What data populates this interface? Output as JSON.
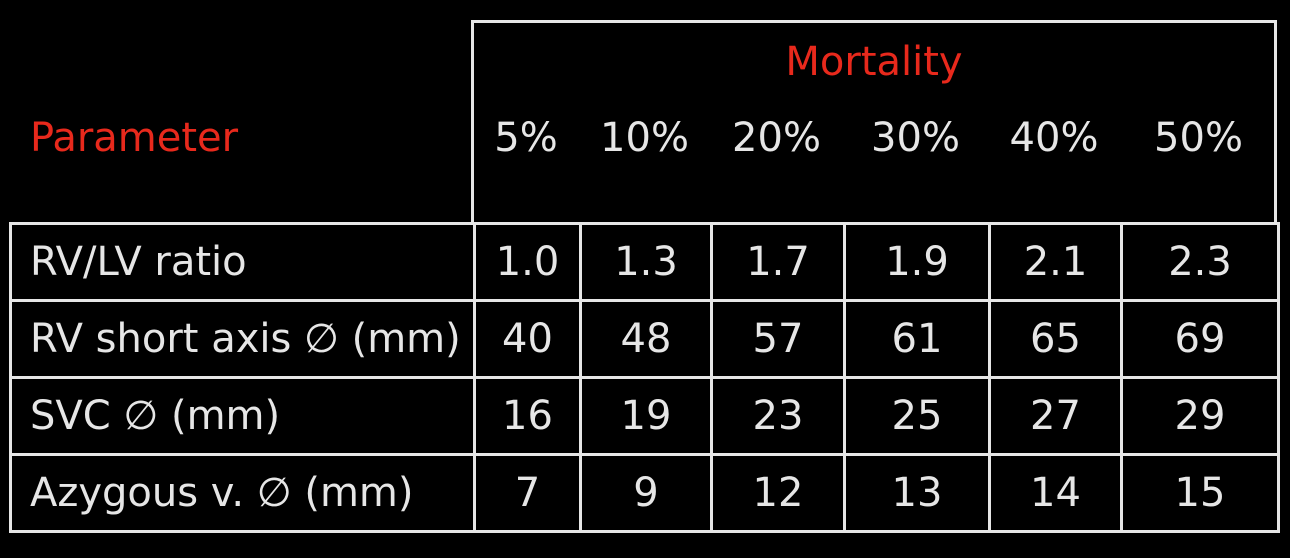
{
  "header": {
    "group_label": "Mortality",
    "parameter_label": "Parameter",
    "columns": [
      "5%",
      "10%",
      "20%",
      "30%",
      "40%",
      "50%"
    ]
  },
  "rows": [
    {
      "label": "RV/LV ratio",
      "values": [
        "1.0",
        "1.3",
        "1.7",
        "1.9",
        "2.1",
        "2.3"
      ]
    },
    {
      "label": "RV short axis ∅ (mm)",
      "values": [
        "40",
        "48",
        "57",
        "61",
        "65",
        "69"
      ]
    },
    {
      "label": "SVC ∅ (mm)",
      "values": [
        "16",
        "19",
        "23",
        "25",
        "27",
        "29"
      ]
    },
    {
      "label": "Azygous v. ∅ (mm)",
      "values": [
        "7",
        "9",
        "12",
        "13",
        "14",
        "15"
      ]
    }
  ],
  "colors": {
    "background": "#000000",
    "text": "#e6e6e6",
    "accent": "#e8291c"
  }
}
